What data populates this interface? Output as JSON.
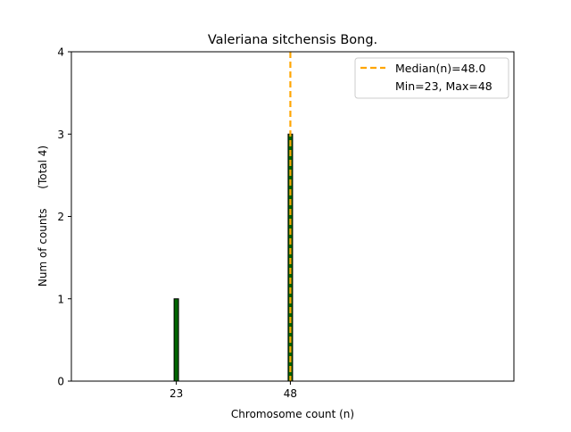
{
  "chart_data": {
    "type": "bar",
    "title": "Valeriana sitchensis Bong.",
    "xlabel": "Chromosome count (n)",
    "ylabel": "Num of counts",
    "ylabel_total": "(Total 4)",
    "x": [
      23,
      48
    ],
    "values": [
      1,
      3
    ],
    "xlim": [
      0,
      97
    ],
    "ylim": [
      0,
      4
    ],
    "xticks": [
      23,
      48
    ],
    "yticks": [
      0,
      1,
      2,
      3,
      4
    ],
    "bar_color": "#006400",
    "median": 48.0,
    "median_color": "#FFA500",
    "legend": {
      "position": "top-right",
      "entries": [
        "Median(n)=48.0",
        "Min=23, Max=48"
      ]
    }
  }
}
